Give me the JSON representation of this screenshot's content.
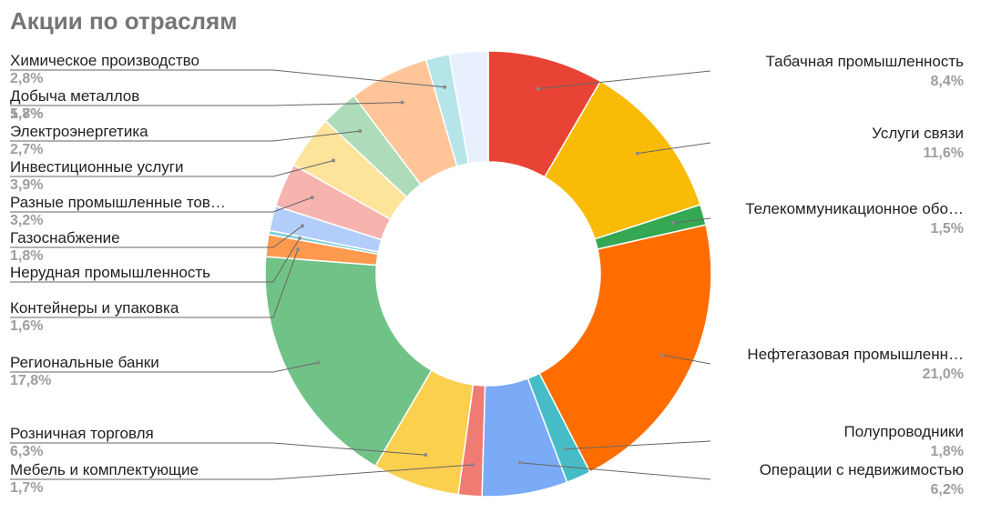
{
  "chart_data": {
    "type": "pie",
    "donut": true,
    "title": "Акции по отраслям",
    "legend": "none",
    "slices": [
      {
        "label": "Табачная промышленность",
        "value": 8.4,
        "value_label": "8,4%",
        "color": "#e94335"
      },
      {
        "label": "Услуги связи",
        "value": 11.6,
        "value_label": "11,6%",
        "color": "#f9bb06"
      },
      {
        "label": "Телекоммуникационное обо…",
        "value": 1.5,
        "value_label": "1,5%",
        "color": "#34a853"
      },
      {
        "label": "Нефтегазовая промышленн…",
        "value": 21.0,
        "value_label": "21,0%",
        "color": "#ff6d01"
      },
      {
        "label": "Полупроводники",
        "value": 1.8,
        "value_label": "1,8%",
        "color": "#46bdc6"
      },
      {
        "label": "Операции с недвижимостью",
        "value": 6.2,
        "value_label": "6,2%",
        "color": "#7baaf7"
      },
      {
        "label": "Мебель и комплектующие",
        "value": 1.7,
        "value_label": "1,7%",
        "color": "#f07b72"
      },
      {
        "label": "Розничная торговля",
        "value": 6.3,
        "value_label": "6,3%",
        "color": "#fcd04f"
      },
      {
        "label": "Региональные банки",
        "value": 17.8,
        "value_label": "17,8%",
        "color": "#71c287"
      },
      {
        "label": "Контейнеры и упаковка",
        "value": 1.6,
        "value_label": "1,6%",
        "color": "#ff994d"
      },
      {
        "label": "Нерудная промышленность",
        "value": 0.3,
        "value_label": "",
        "color": "#7ed1d7"
      },
      {
        "label": "Газоснабжение",
        "value": 1.8,
        "value_label": "1,8%",
        "color": "#b3cefb"
      },
      {
        "label": "Разные промышленные тов…",
        "value": 3.2,
        "value_label": "3,2%",
        "color": "#f7b4ae"
      },
      {
        "label": "Инвестиционные услуги",
        "value": 3.9,
        "value_label": "3,9%",
        "color": "#fde49b"
      },
      {
        "label": "Электроэнергетика",
        "value": 2.7,
        "value_label": "2,7%",
        "color": "#aedcba"
      },
      {
        "label": "Добыча металлов",
        "value": 5.8,
        "value_label": "5,8%",
        "color": "#ffc599"
      },
      {
        "label": "Химическое производство",
        "value": 1.7,
        "value_label": "1,7%",
        "color": "#b5e5e8"
      },
      {
        "label": "",
        "value": 2.8,
        "value_label": "2,8%",
        "color": "#e8f0fe"
      }
    ]
  }
}
